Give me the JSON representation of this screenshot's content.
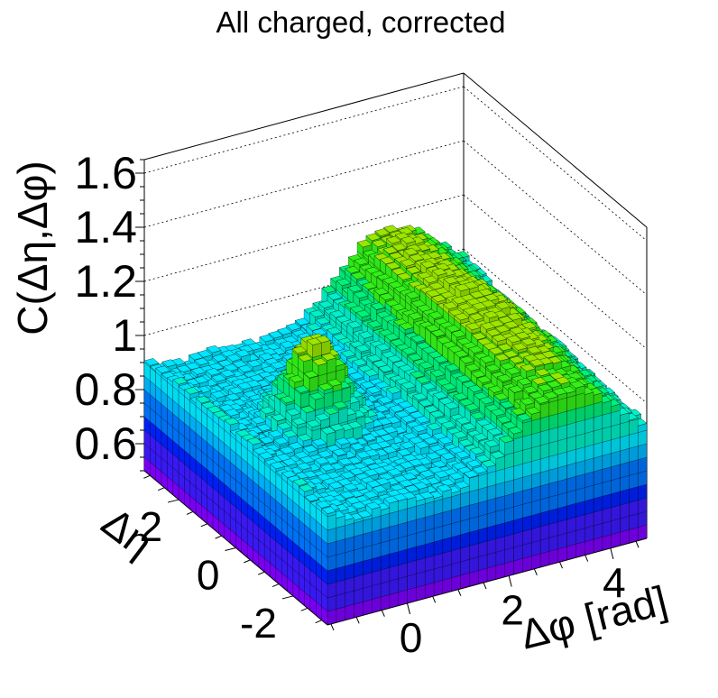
{
  "chart_data": {
    "type": "lego3d",
    "title": "All charged, corrected",
    "xlabel": "Δφ [rad]",
    "ylabel": "Δη",
    "zlabel": "C(Δη,Δφ)",
    "xlim": [
      -1.5708,
      4.7124
    ],
    "ylim": [
      -3.2,
      3.2
    ],
    "zlim": [
      0.5,
      1.65
    ],
    "xticks": [
      "0",
      "2",
      "4"
    ],
    "yticks": [
      "-2",
      "0",
      "2"
    ],
    "zticks": [
      "0.6",
      "0.8",
      "1",
      "1.2",
      "1.4",
      "1.6"
    ],
    "grid": true,
    "palette": [
      "#7f00ff",
      "#3c1aff",
      "#0022ff",
      "#0077ff",
      "#00b8ff",
      "#00e6ff",
      "#00f0c8",
      "#00f07a",
      "#33f018",
      "#9ae600",
      "#e0e000"
    ],
    "summary_values": {
      "near_side_peak_max": 1.23,
      "away_side_ridge_max": 1.22,
      "baseline_min": 0.82
    }
  }
}
